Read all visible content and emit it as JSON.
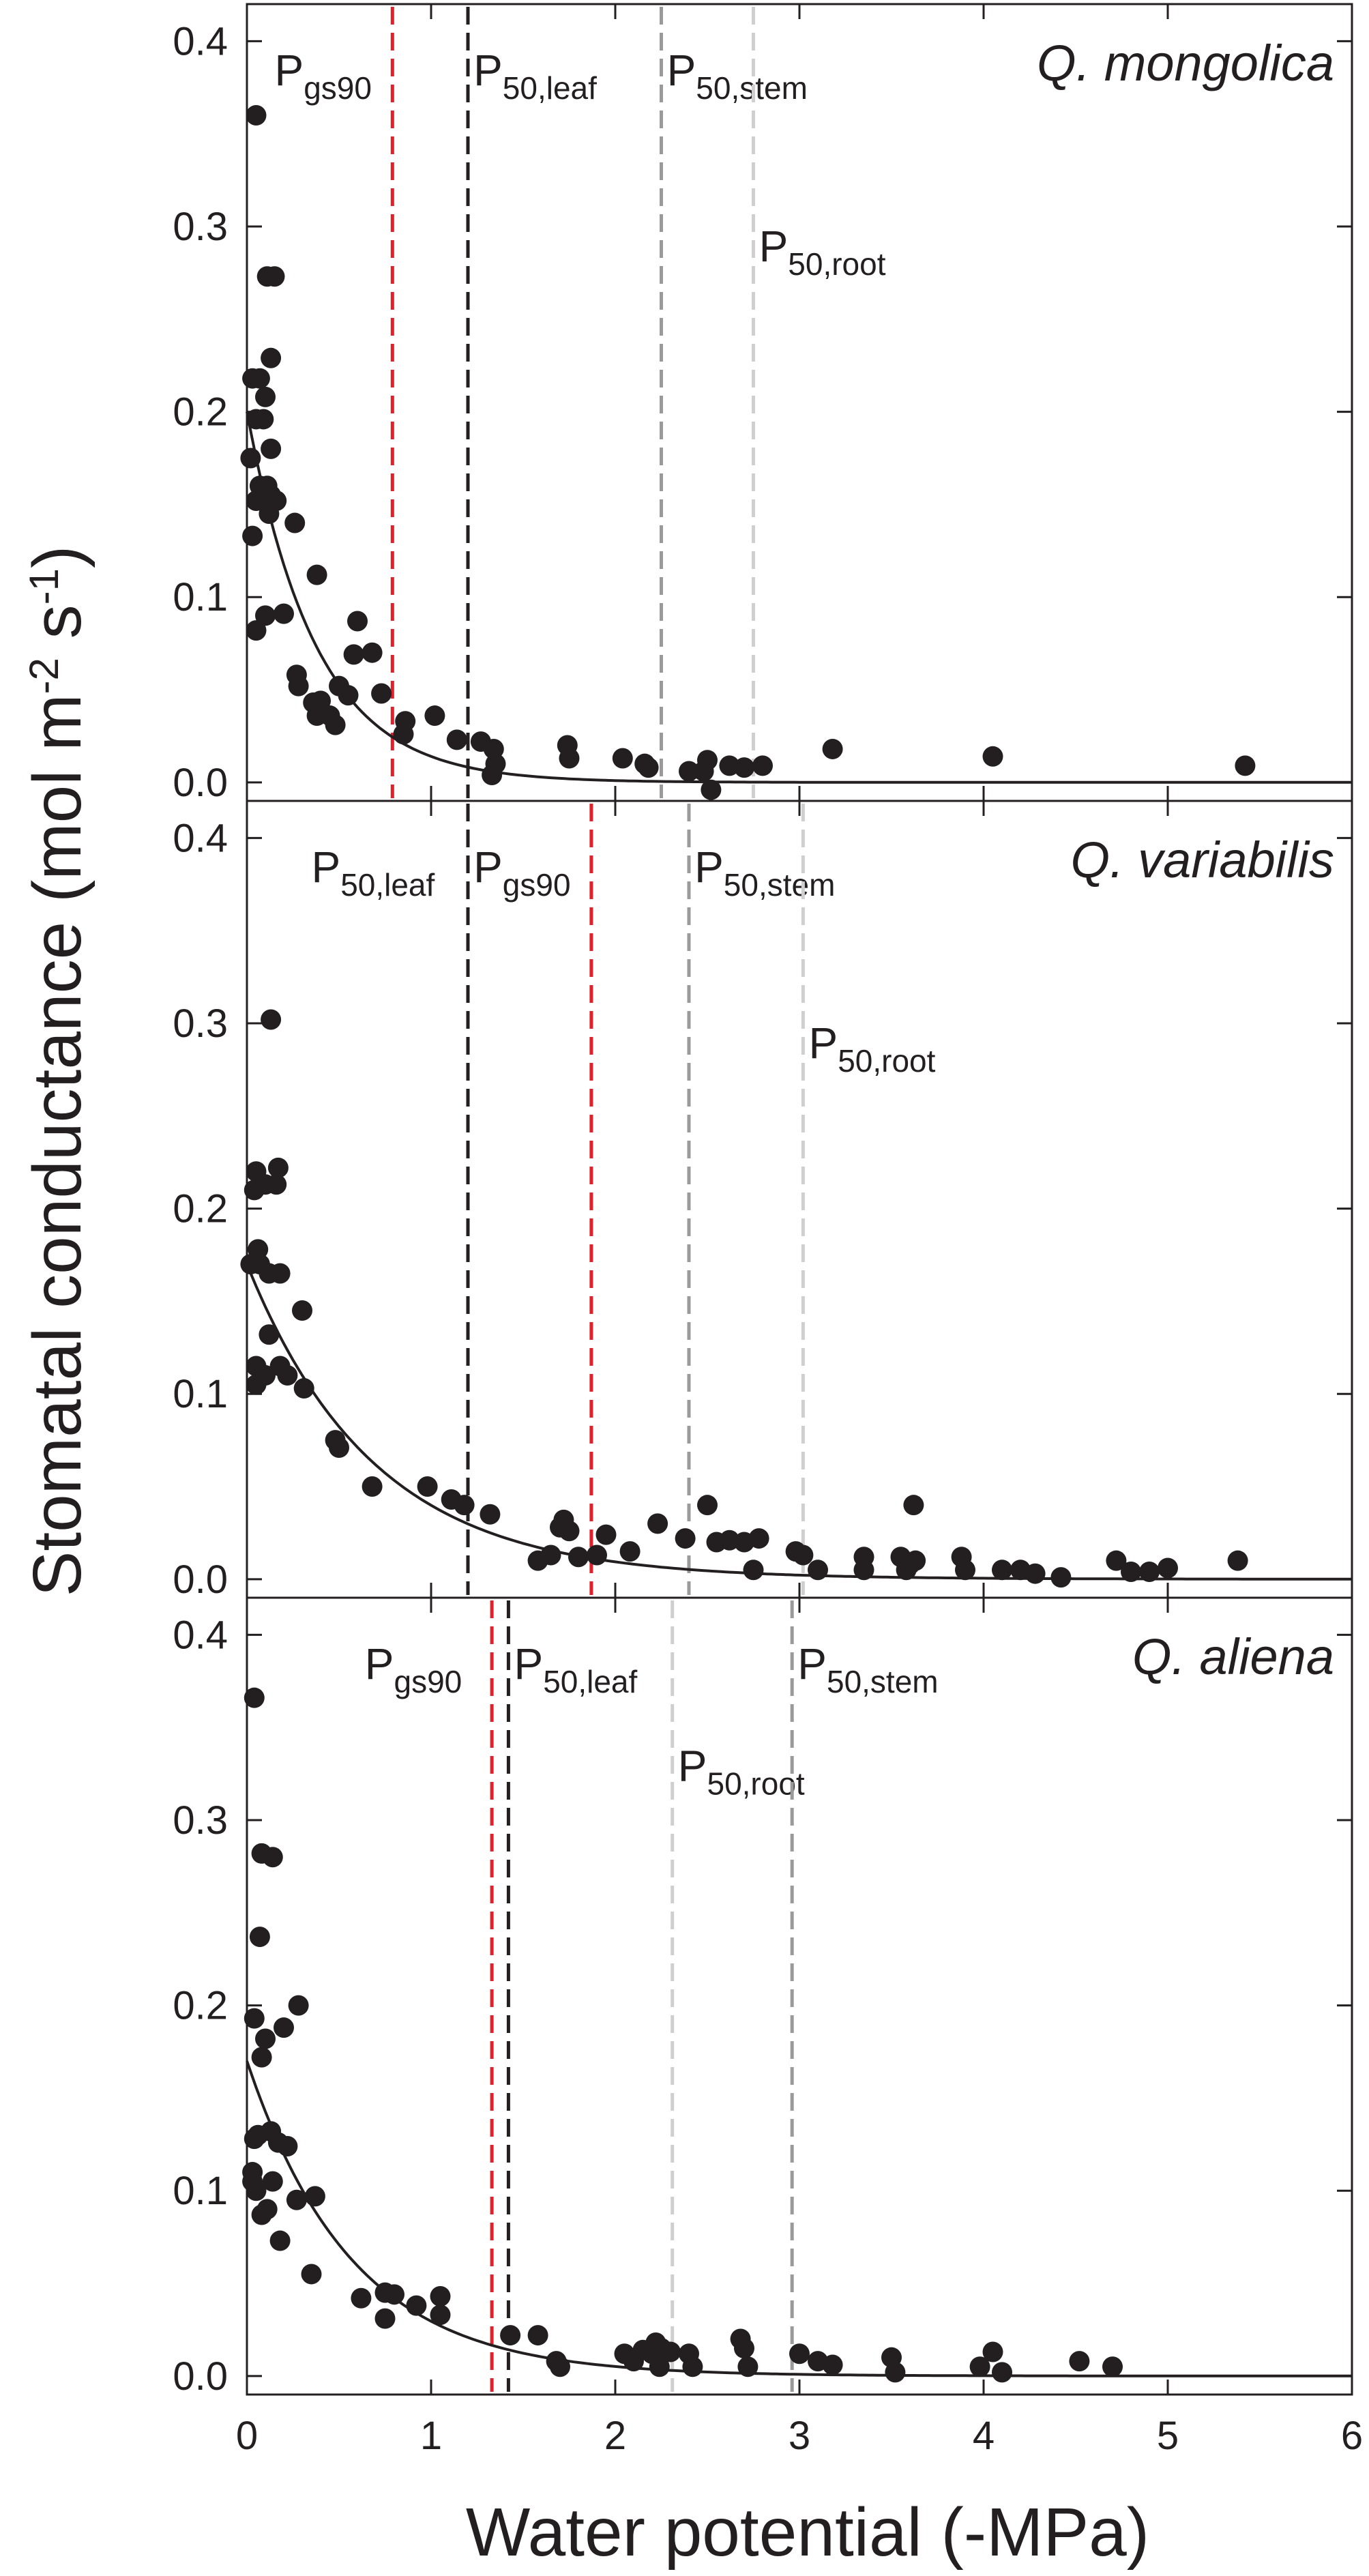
{
  "chart_data": {
    "type": "scatter",
    "xlabel": "Water potential (-MPa)",
    "ylabel": {
      "main": "Stomatal conductance (mol m",
      "exp1": "-2",
      "mid": " s",
      "exp2": "-1",
      "end": ")"
    },
    "xlim": [
      0,
      6
    ],
    "ylim": [
      -0.01,
      0.42
    ],
    "x_ticks": [
      0,
      1,
      2,
      3,
      4,
      5,
      6
    ],
    "y_ticks": [
      0.0,
      0.1,
      0.2,
      0.3,
      0.4
    ],
    "x_tick_labels": [
      "0",
      "1",
      "2",
      "3",
      "4",
      "5",
      "6"
    ],
    "y_tick_labels": [
      "0.0",
      "0.1",
      "0.2",
      "0.3",
      "0.4"
    ],
    "grid": false,
    "colors": {
      "points": "#231f20",
      "fit": "#231f20",
      "gs90": "#e0202a",
      "leaf": "#231f20",
      "stem": "#9a9a9a",
      "root": "#cfcfcf"
    },
    "panels": [
      {
        "species": "Q. mongolica",
        "fit": {
          "a": 0.2,
          "k": 2.66
        },
        "markers": [
          {
            "key": "gs90",
            "base": "P",
            "sub": "gs90",
            "x": 0.79,
            "label_x": 0.15,
            "label_y": 0.385
          },
          {
            "key": "leaf",
            "base": "P",
            "sub": "50,leaf",
            "x": 1.2,
            "label_x": 1.23,
            "label_y": 0.385
          },
          {
            "key": "stem",
            "base": "P",
            "sub": "50,stem",
            "x": 2.25,
            "label_x": 2.28,
            "label_y": 0.385
          },
          {
            "key": "root",
            "base": "P",
            "sub": "50,root",
            "x": 2.75,
            "label_x": 2.78,
            "label_y": 0.29
          }
        ],
        "points": [
          [
            0.05,
            0.36
          ],
          [
            0.11,
            0.273
          ],
          [
            0.15,
            0.273
          ],
          [
            0.13,
            0.229
          ],
          [
            0.03,
            0.218
          ],
          [
            0.07,
            0.218
          ],
          [
            0.1,
            0.208
          ],
          [
            0.09,
            0.196
          ],
          [
            0.05,
            0.196
          ],
          [
            0.13,
            0.18
          ],
          [
            0.02,
            0.175
          ],
          [
            0.07,
            0.16
          ],
          [
            0.11,
            0.16
          ],
          [
            0.05,
            0.152
          ],
          [
            0.09,
            0.153
          ],
          [
            0.13,
            0.155
          ],
          [
            0.16,
            0.152
          ],
          [
            0.12,
            0.145
          ],
          [
            0.26,
            0.14
          ],
          [
            0.03,
            0.133
          ],
          [
            0.38,
            0.112
          ],
          [
            0.2,
            0.091
          ],
          [
            0.1,
            0.09
          ],
          [
            0.05,
            0.082
          ],
          [
            0.6,
            0.087
          ],
          [
            0.58,
            0.069
          ],
          [
            0.68,
            0.07
          ],
          [
            0.27,
            0.058
          ],
          [
            0.28,
            0.052
          ],
          [
            0.5,
            0.052
          ],
          [
            0.55,
            0.047
          ],
          [
            0.73,
            0.048
          ],
          [
            0.36,
            0.043
          ],
          [
            0.4,
            0.044
          ],
          [
            0.45,
            0.036
          ],
          [
            0.38,
            0.036
          ],
          [
            0.48,
            0.031
          ],
          [
            0.86,
            0.033
          ],
          [
            1.02,
            0.036
          ],
          [
            0.85,
            0.026
          ],
          [
            1.14,
            0.023
          ],
          [
            1.27,
            0.022
          ],
          [
            1.34,
            0.018
          ],
          [
            1.35,
            0.01
          ],
          [
            1.33,
            0.004
          ],
          [
            1.74,
            0.02
          ],
          [
            1.75,
            0.013
          ],
          [
            2.04,
            0.013
          ],
          [
            2.16,
            0.01
          ],
          [
            2.18,
            0.008
          ],
          [
            2.4,
            0.006
          ],
          [
            2.48,
            0.006
          ],
          [
            2.5,
            0.012
          ],
          [
            2.52,
            -0.004
          ],
          [
            2.62,
            0.009
          ],
          [
            2.7,
            0.008
          ],
          [
            2.8,
            0.009
          ],
          [
            3.18,
            0.018
          ],
          [
            4.05,
            0.014
          ],
          [
            5.42,
            0.009
          ]
        ]
      },
      {
        "species": "Q. variabilis",
        "fit": {
          "a": 0.17,
          "k": 1.45
        },
        "markers": [
          {
            "key": "leaf",
            "base": "P",
            "sub": "50,leaf",
            "x": 1.2,
            "label_x": 0.35,
            "label_y": 0.385
          },
          {
            "key": "gs90",
            "base": "P",
            "sub": "gs90",
            "x": 1.87,
            "label_x": 1.23,
            "label_y": 0.385
          },
          {
            "key": "stem",
            "base": "P",
            "sub": "50,stem",
            "x": 2.4,
            "label_x": 2.43,
            "label_y": 0.385
          },
          {
            "key": "root",
            "base": "P",
            "sub": "50,root",
            "x": 3.02,
            "label_x": 3.05,
            "label_y": 0.29
          }
        ],
        "points": [
          [
            0.13,
            0.302
          ],
          [
            0.05,
            0.22
          ],
          [
            0.17,
            0.222
          ],
          [
            0.04,
            0.21
          ],
          [
            0.1,
            0.213
          ],
          [
            0.16,
            0.213
          ],
          [
            0.06,
            0.178
          ],
          [
            0.02,
            0.17
          ],
          [
            0.07,
            0.17
          ],
          [
            0.12,
            0.165
          ],
          [
            0.18,
            0.165
          ],
          [
            0.3,
            0.145
          ],
          [
            0.12,
            0.132
          ],
          [
            0.05,
            0.115
          ],
          [
            0.18,
            0.115
          ],
          [
            0.1,
            0.11
          ],
          [
            0.22,
            0.11
          ],
          [
            0.05,
            0.105
          ],
          [
            0.31,
            0.103
          ],
          [
            0.48,
            0.075
          ],
          [
            0.5,
            0.071
          ],
          [
            0.68,
            0.05
          ],
          [
            0.98,
            0.05
          ],
          [
            1.11,
            0.043
          ],
          [
            1.18,
            0.04
          ],
          [
            1.32,
            0.035
          ],
          [
            1.58,
            0.01
          ],
          [
            1.65,
            0.013
          ],
          [
            1.7,
            0.028
          ],
          [
            1.72,
            0.032
          ],
          [
            1.75,
            0.026
          ],
          [
            1.8,
            0.012
          ],
          [
            1.9,
            0.013
          ],
          [
            1.95,
            0.024
          ],
          [
            2.08,
            0.015
          ],
          [
            2.23,
            0.03
          ],
          [
            2.38,
            0.022
          ],
          [
            2.5,
            0.04
          ],
          [
            2.55,
            0.02
          ],
          [
            2.62,
            0.021
          ],
          [
            2.7,
            0.02
          ],
          [
            2.78,
            0.022
          ],
          [
            2.75,
            0.005
          ],
          [
            2.98,
            0.015
          ],
          [
            3.02,
            0.013
          ],
          [
            3.1,
            0.005
          ],
          [
            3.35,
            0.012
          ],
          [
            3.35,
            0.005
          ],
          [
            3.55,
            0.012
          ],
          [
            3.58,
            0.005
          ],
          [
            3.62,
            0.04
          ],
          [
            3.6,
            0.008
          ],
          [
            3.63,
            0.01
          ],
          [
            3.88,
            0.012
          ],
          [
            3.9,
            0.005
          ],
          [
            4.1,
            0.005
          ],
          [
            4.2,
            0.005
          ],
          [
            4.28,
            0.003
          ],
          [
            4.42,
            0.001
          ],
          [
            4.72,
            0.01
          ],
          [
            4.8,
            0.004
          ],
          [
            4.9,
            0.004
          ],
          [
            5.0,
            0.006
          ],
          [
            5.38,
            0.01
          ]
        ]
      },
      {
        "species": "Q. aliena",
        "fit": {
          "a": 0.17,
          "k": 1.75
        },
        "markers": [
          {
            "key": "gs90",
            "base": "P",
            "sub": "gs90",
            "x": 1.33,
            "label_x": 0.64,
            "label_y": 0.385
          },
          {
            "key": "leaf",
            "base": "P",
            "sub": "50,leaf",
            "x": 1.42,
            "label_x": 1.45,
            "label_y": 0.385
          },
          {
            "key": "root",
            "base": "P",
            "sub": "50,root",
            "x": 2.31,
            "label_x": 2.34,
            "label_y": 0.33
          },
          {
            "key": "stem",
            "base": "P",
            "sub": "50,stem",
            "x": 2.96,
            "label_x": 2.99,
            "label_y": 0.385
          }
        ],
        "points": [
          [
            0.04,
            0.366
          ],
          [
            0.08,
            0.282
          ],
          [
            0.14,
            0.28
          ],
          [
            0.07,
            0.237
          ],
          [
            0.28,
            0.2
          ],
          [
            0.04,
            0.193
          ],
          [
            0.1,
            0.182
          ],
          [
            0.2,
            0.188
          ],
          [
            0.08,
            0.172
          ],
          [
            0.04,
            0.128
          ],
          [
            0.06,
            0.13
          ],
          [
            0.13,
            0.132
          ],
          [
            0.17,
            0.126
          ],
          [
            0.22,
            0.124
          ],
          [
            0.03,
            0.11
          ],
          [
            0.03,
            0.105
          ],
          [
            0.05,
            0.1
          ],
          [
            0.14,
            0.105
          ],
          [
            0.27,
            0.095
          ],
          [
            0.37,
            0.097
          ],
          [
            0.11,
            0.09
          ],
          [
            0.08,
            0.087
          ],
          [
            0.18,
            0.073
          ],
          [
            0.35,
            0.055
          ],
          [
            0.62,
            0.042
          ],
          [
            0.75,
            0.045
          ],
          [
            0.8,
            0.044
          ],
          [
            0.75,
            0.031
          ],
          [
            0.92,
            0.038
          ],
          [
            1.05,
            0.043
          ],
          [
            1.05,
            0.033
          ],
          [
            1.43,
            0.022
          ],
          [
            1.58,
            0.022
          ],
          [
            1.68,
            0.008
          ],
          [
            1.7,
            0.005
          ],
          [
            2.05,
            0.012
          ],
          [
            2.1,
            0.008
          ],
          [
            2.15,
            0.014
          ],
          [
            2.2,
            0.012
          ],
          [
            2.22,
            0.018
          ],
          [
            2.25,
            0.015
          ],
          [
            2.3,
            0.013
          ],
          [
            2.24,
            0.005
          ],
          [
            2.4,
            0.012
          ],
          [
            2.42,
            0.005
          ],
          [
            2.68,
            0.02
          ],
          [
            2.7,
            0.015
          ],
          [
            2.72,
            0.005
          ],
          [
            3.0,
            0.012
          ],
          [
            3.1,
            0.008
          ],
          [
            3.18,
            0.006
          ],
          [
            3.5,
            0.01
          ],
          [
            3.52,
            0.002
          ],
          [
            3.98,
            0.005
          ],
          [
            4.05,
            0.013
          ],
          [
            4.1,
            0.002
          ],
          [
            4.52,
            0.008
          ],
          [
            4.7,
            0.005
          ]
        ]
      }
    ]
  }
}
